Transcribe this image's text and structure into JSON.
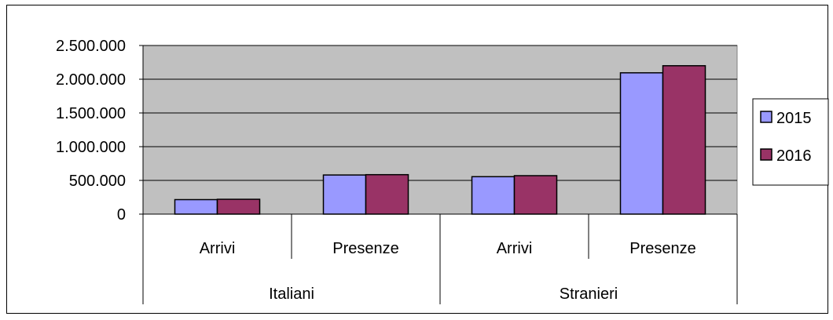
{
  "chart_data": {
    "type": "bar",
    "title": "",
    "xlabel": "",
    "ylabel": "",
    "groups": [
      {
        "name": "Italiani",
        "categories": [
          "Arrivi",
          "Presenze"
        ]
      },
      {
        "name": "Stranieri",
        "categories": [
          "Arrivi",
          "Presenze"
        ]
      }
    ],
    "categories": [
      "Arrivi",
      "Presenze",
      "Arrivi",
      "Presenze"
    ],
    "series": [
      {
        "name": "2015",
        "color": "#9999ff",
        "values": [
          215000,
          580000,
          555000,
          2095000
        ]
      },
      {
        "name": "2016",
        "color": "#993366",
        "values": [
          220000,
          585000,
          570000,
          2200000
        ]
      }
    ],
    "ylim": [
      0,
      2500000
    ],
    "yticks": [
      0,
      500000,
      1000000,
      1500000,
      2000000,
      2500000
    ],
    "ytick_labels": [
      "0",
      "500.000",
      "1.000.000",
      "1.500.000",
      "2.000.000",
      "2.500.000"
    ],
    "grid": true,
    "plot_background": "#c0c0c0",
    "legend_position": "right"
  }
}
